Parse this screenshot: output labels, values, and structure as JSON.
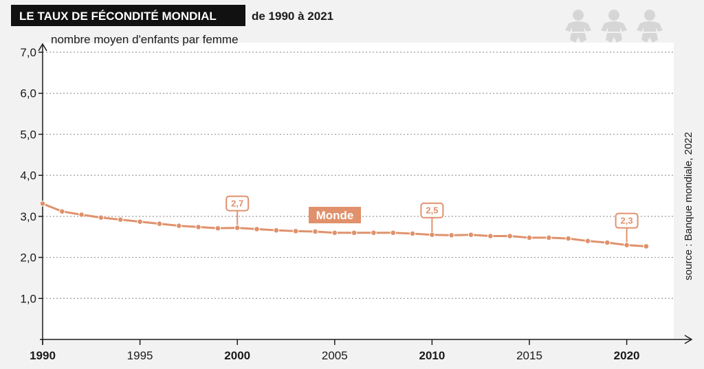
{
  "header": {
    "title": "LE TAUX DE FÉCONDITÉ MONDIAL",
    "subtitle": "de 1990 à 2021"
  },
  "source": "source : Banque mondiale, 2022",
  "icons": [
    "baby-icon",
    "baby-icon",
    "baby-icon"
  ],
  "colors": {
    "series": "#e0916b",
    "title_bg": "#111111",
    "background": "#f2f2f2",
    "plot_bg": "#ffffff",
    "grid": "#9a9a9a",
    "icon": "#d6d6d6"
  },
  "chart_data": {
    "type": "line",
    "ylabel": "nombre moyen d'enfants par femme",
    "xlabel": "",
    "ylim": [
      0,
      7
    ],
    "xlim": [
      1990,
      2022
    ],
    "y_ticks": [
      "1,0",
      "2,0",
      "3,0",
      "4,0",
      "5,0",
      "6,0",
      "7,0"
    ],
    "y_tick_values": [
      1,
      2,
      3,
      4,
      5,
      6,
      7
    ],
    "x_ticks": [
      "1990",
      "1995",
      "2000",
      "2005",
      "2010",
      "2015",
      "2020"
    ],
    "x_tick_values": [
      1990,
      1995,
      2000,
      2005,
      2010,
      2015,
      2020
    ],
    "x_ticks_bold": [
      true,
      false,
      true,
      false,
      true,
      false,
      true
    ],
    "grid": true,
    "series": [
      {
        "name": "Monde",
        "x": [
          1990,
          1991,
          1992,
          1993,
          1994,
          1995,
          1996,
          1997,
          1998,
          1999,
          2000,
          2001,
          2002,
          2003,
          2004,
          2005,
          2006,
          2007,
          2008,
          2009,
          2010,
          2011,
          2012,
          2013,
          2014,
          2015,
          2016,
          2017,
          2018,
          2019,
          2020,
          2021
        ],
        "values": [
          3.31,
          3.12,
          3.04,
          2.97,
          2.92,
          2.87,
          2.82,
          2.77,
          2.74,
          2.71,
          2.72,
          2.69,
          2.66,
          2.64,
          2.63,
          2.6,
          2.6,
          2.6,
          2.6,
          2.58,
          2.55,
          2.54,
          2.55,
          2.52,
          2.52,
          2.48,
          2.48,
          2.46,
          2.4,
          2.36,
          2.3,
          2.27
        ]
      }
    ],
    "annotations": [
      {
        "x": 2000,
        "y": 2.72,
        "label": "2,7"
      },
      {
        "x": 2010,
        "y": 2.55,
        "label": "2,5"
      },
      {
        "x": 2020,
        "y": 2.3,
        "label": "2,3"
      }
    ]
  }
}
